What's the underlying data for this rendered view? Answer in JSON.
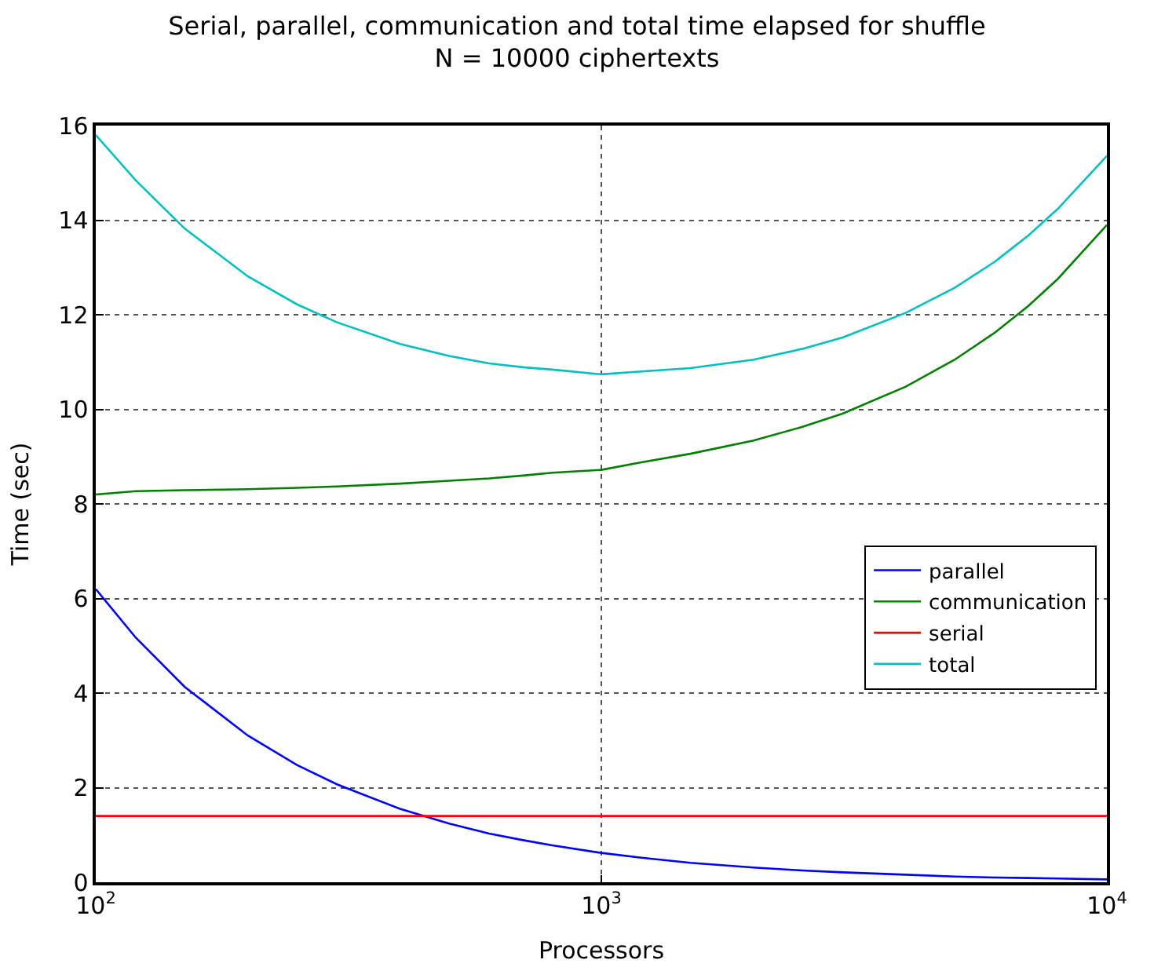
{
  "chart_data": {
    "type": "line",
    "title": "Serial, parallel, communication and total time elapsed for shuffle\nN = 10000 ciphertexts",
    "xlabel": "Processors",
    "ylabel": "Time (sec)",
    "x": [
      100,
      120,
      150,
      200,
      250,
      300,
      400,
      500,
      600,
      700,
      800,
      1000,
      1200,
      1500,
      2000,
      2500,
      3000,
      4000,
      5000,
      6000,
      7000,
      8000,
      10000
    ],
    "series": [
      {
        "name": "parallel",
        "color": "#0000ff",
        "values": [
          6.2,
          5.17,
          4.13,
          3.1,
          2.48,
          2.07,
          1.55,
          1.24,
          1.03,
          0.89,
          0.78,
          0.62,
          0.52,
          0.41,
          0.31,
          0.25,
          0.21,
          0.16,
          0.12,
          0.1,
          0.09,
          0.08,
          0.06
        ]
      },
      {
        "name": "communication",
        "color": "#008000",
        "values": [
          8.2,
          8.27,
          8.29,
          8.31,
          8.34,
          8.37,
          8.43,
          8.49,
          8.54,
          8.6,
          8.66,
          8.72,
          8.88,
          9.06,
          9.34,
          9.63,
          9.91,
          10.48,
          11.05,
          11.62,
          12.19,
          12.76,
          13.9
        ]
      },
      {
        "name": "serial",
        "color": "#ff0000",
        "values": [
          1.4,
          1.4,
          1.4,
          1.4,
          1.4,
          1.4,
          1.4,
          1.4,
          1.4,
          1.4,
          1.4,
          1.4,
          1.4,
          1.4,
          1.4,
          1.4,
          1.4,
          1.4,
          1.4,
          1.4,
          1.4,
          1.4,
          1.4
        ]
      },
      {
        "name": "total",
        "color": "#00bfbf",
        "values": [
          15.8,
          14.84,
          13.82,
          12.81,
          12.22,
          11.84,
          11.38,
          11.13,
          10.97,
          10.89,
          10.84,
          10.74,
          10.8,
          10.87,
          11.05,
          11.28,
          11.52,
          12.04,
          12.57,
          13.12,
          13.68,
          14.24,
          15.36
        ]
      }
    ],
    "log": "x",
    "xlim": [
      100,
      10000
    ],
    "xticks": [
      {
        "value": 100,
        "label": "10$^{2}$"
      },
      {
        "value": 1000,
        "label": "10$^{3}$"
      },
      {
        "value": 10000,
        "label": "10$^{4}$"
      }
    ],
    "ylim": [
      0,
      16
    ],
    "yticks": [
      0,
      2,
      4,
      6,
      8,
      10,
      12,
      14,
      16
    ],
    "grid": true,
    "legend": "right",
    "line_style": "solid",
    "marker": "none"
  }
}
